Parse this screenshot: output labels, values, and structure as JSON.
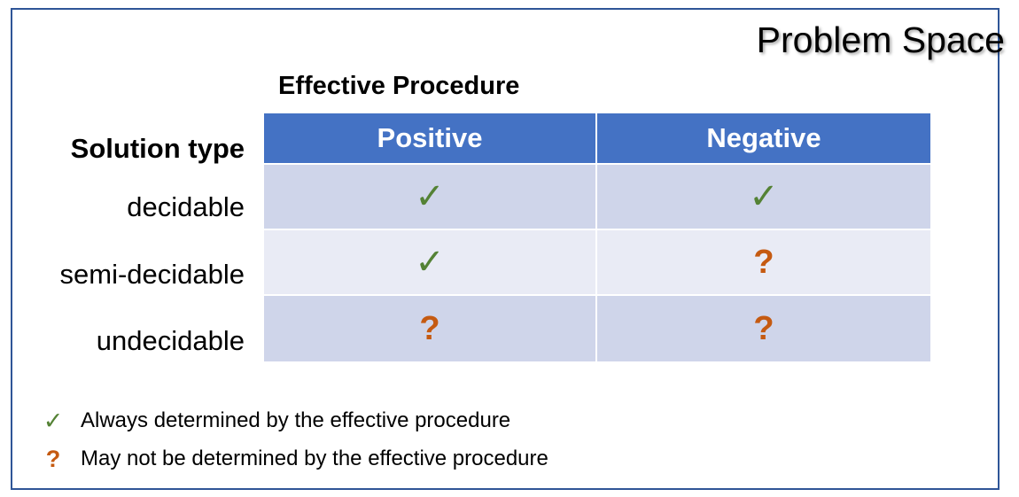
{
  "title": "Problem Space",
  "subheading": "Effective Procedure",
  "table": {
    "row_header": "Solution type",
    "columns": [
      "Positive",
      "Negative"
    ],
    "rows": [
      {
        "label": "decidable",
        "positive": "✓",
        "negative": "✓"
      },
      {
        "label": "semi-decidable",
        "positive": "✓",
        "negative": "?"
      },
      {
        "label": "undecidable",
        "positive": "?",
        "negative": "?"
      }
    ]
  },
  "legend": [
    {
      "symbol": "✓",
      "text": "Always determined by the effective procedure"
    },
    {
      "symbol": "?",
      "text": "May not be determined by the effective procedure"
    }
  ],
  "colors": {
    "header_bg": "#4472c4",
    "row_dark": "#cfd5ea",
    "row_light": "#e9ebf5",
    "check": "#548235",
    "question": "#c55a11",
    "border": "#2f5597"
  }
}
